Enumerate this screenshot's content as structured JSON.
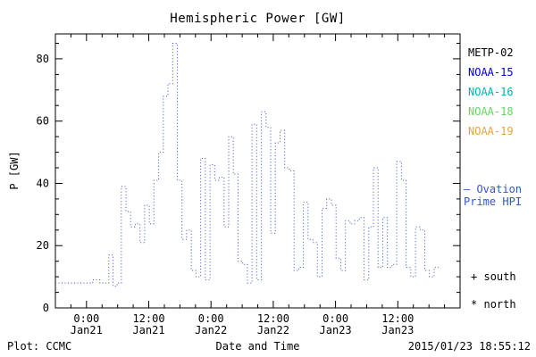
{
  "title": "Hemispheric Power [GW]",
  "footer": {
    "plot_credit": "Plot: CCMC",
    "xlabel": "Date and Time",
    "timestamp": "2015/01/23 18:55:12"
  },
  "legend": {
    "satellites": [
      {
        "label": "METP-02",
        "color": "#000000"
      },
      {
        "label": "NOAA-15",
        "color": "#0000cc"
      },
      {
        "label": "NOAA-16",
        "color": "#00b0b0"
      },
      {
        "label": "NOAA-18",
        "color": "#63d663"
      },
      {
        "label": "NOAA-19",
        "color": "#e2a53e"
      }
    ],
    "model": {
      "line1": "– Ovation",
      "line2": "Prime HPI",
      "color": "#3355cc"
    },
    "hemisphere_markers": [
      {
        "symbol": "+",
        "label": "south"
      },
      {
        "symbol": "*",
        "label": "north"
      }
    ]
  },
  "chart_data": {
    "type": "line",
    "subtype": "step-dotted",
    "title": "Hemispheric Power [GW]",
    "xlabel": "Date and Time",
    "ylabel": "P [GW]",
    "line_color": "#3a50c0",
    "frame_color": "#000000",
    "xlim": [
      0,
      78
    ],
    "ylim": [
      0,
      88
    ],
    "x_unit": "hours",
    "yticks": [
      0,
      20,
      40,
      60,
      80
    ],
    "y_minor_step": 5,
    "x_minor_step": 3,
    "xticks": [
      {
        "t": 6,
        "line1": "0:00",
        "line2": "Jan21"
      },
      {
        "t": 18,
        "line1": "12:00",
        "line2": "Jan21"
      },
      {
        "t": 30,
        "line1": "0:00",
        "line2": "Jan22"
      },
      {
        "t": 42,
        "line1": "12:00",
        "line2": "Jan22"
      },
      {
        "t": 54,
        "line1": "0:00",
        "line2": "Jan23"
      },
      {
        "t": 66,
        "line1": "12:00",
        "line2": "Jan23"
      }
    ],
    "points": [
      [
        0,
        8
      ],
      [
        7.2,
        9
      ],
      [
        8.6,
        8
      ],
      [
        10.3,
        17
      ],
      [
        11.1,
        7
      ],
      [
        11.9,
        8
      ],
      [
        12.7,
        39
      ],
      [
        13.6,
        31
      ],
      [
        14.5,
        26
      ],
      [
        15.4,
        27
      ],
      [
        16.3,
        21
      ],
      [
        17.2,
        33
      ],
      [
        18.1,
        27
      ],
      [
        19.0,
        41
      ],
      [
        19.9,
        50
      ],
      [
        20.8,
        68
      ],
      [
        21.7,
        72
      ],
      [
        22.6,
        85
      ],
      [
        23.5,
        41
      ],
      [
        24.4,
        22
      ],
      [
        25.3,
        25
      ],
      [
        26.2,
        12
      ],
      [
        27.1,
        10
      ],
      [
        28.0,
        48
      ],
      [
        28.9,
        9
      ],
      [
        29.8,
        46
      ],
      [
        30.7,
        41
      ],
      [
        31.6,
        42
      ],
      [
        32.5,
        26
      ],
      [
        33.4,
        55
      ],
      [
        34.3,
        43
      ],
      [
        35.2,
        15
      ],
      [
        36.1,
        14
      ],
      [
        37.0,
        8
      ],
      [
        37.9,
        59
      ],
      [
        38.8,
        9
      ],
      [
        39.7,
        63
      ],
      [
        40.6,
        58
      ],
      [
        41.5,
        24
      ],
      [
        42.4,
        53
      ],
      [
        43.3,
        57
      ],
      [
        44.2,
        45
      ],
      [
        45.1,
        44
      ],
      [
        46.0,
        12
      ],
      [
        46.9,
        13
      ],
      [
        47.8,
        34
      ],
      [
        48.7,
        22
      ],
      [
        49.6,
        21
      ],
      [
        50.5,
        10
      ],
      [
        51.4,
        32
      ],
      [
        52.3,
        35
      ],
      [
        53.2,
        33
      ],
      [
        54.1,
        16
      ],
      [
        55.0,
        12
      ],
      [
        55.9,
        28
      ],
      [
        56.8,
        27
      ],
      [
        57.7,
        28
      ],
      [
        58.6,
        29
      ],
      [
        59.5,
        9
      ],
      [
        60.4,
        26
      ],
      [
        61.3,
        45
      ],
      [
        62.2,
        13
      ],
      [
        63.1,
        29
      ],
      [
        64.0,
        13
      ],
      [
        64.9,
        14
      ],
      [
        65.8,
        47
      ],
      [
        66.7,
        41
      ],
      [
        67.6,
        13
      ],
      [
        68.5,
        10
      ],
      [
        69.4,
        26
      ],
      [
        70.3,
        25
      ],
      [
        71.2,
        12
      ],
      [
        72.1,
        10
      ],
      [
        73.0,
        13
      ]
    ]
  }
}
